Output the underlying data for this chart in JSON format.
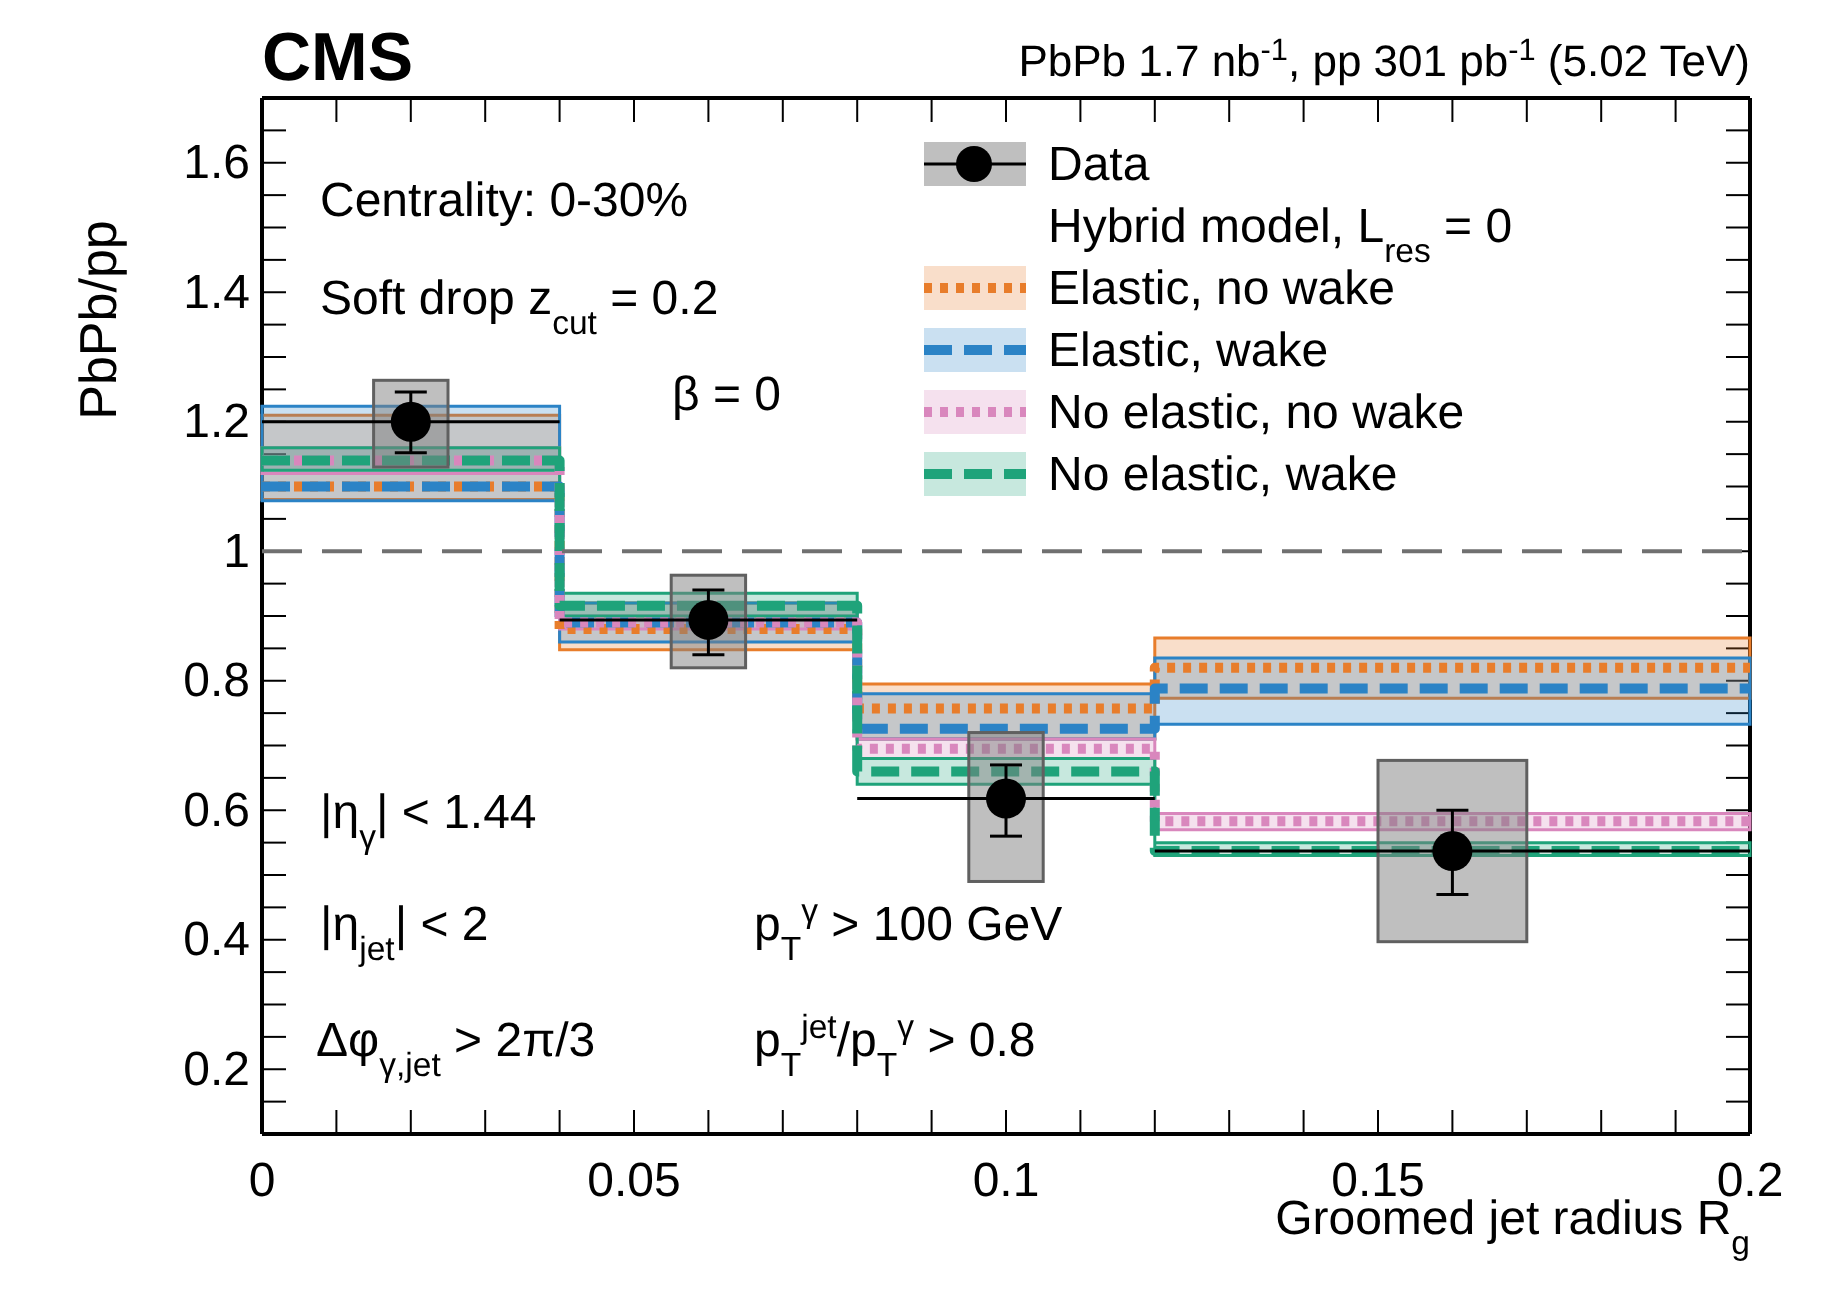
{
  "chart_data": {
    "type": "scatter",
    "title": "CMS",
    "subtitle": "PbPb 1.7 nb$^{-1}$, pp 301 pb$^{-1}$ (5.02 TeV)",
    "xlabel": "Groomed jet radius R$_{g}$",
    "ylabel": "PbPb/pp",
    "legend_title": "Hybrid model, L$_{res}$ = 0",
    "xlim": [
      0,
      0.2
    ],
    "ylim": [
      0.1,
      1.7
    ],
    "xticks": [
      0,
      {
        "value": 0.01,
        "label": null
      },
      {
        "value": 0.02,
        "label": null
      },
      {
        "value": 0.03,
        "label": null
      },
      {
        "value": 0.04,
        "label": null
      },
      0.05,
      {
        "value": 0.06,
        "label": null
      },
      {
        "value": 0.07,
        "label": null
      },
      {
        "value": 0.08,
        "label": null
      },
      {
        "value": 0.09,
        "label": null
      },
      0.1,
      {
        "value": 0.11,
        "label": null
      },
      {
        "value": 0.12,
        "label": null
      },
      {
        "value": 0.13,
        "label": null
      },
      {
        "value": 0.14,
        "label": null
      },
      0.15,
      {
        "value": 0.16,
        "label": null
      },
      {
        "value": 0.17,
        "label": null
      },
      {
        "value": 0.18,
        "label": null
      },
      {
        "value": 0.19,
        "label": null
      },
      0.2
    ],
    "yticks": [
      {
        "value": 0.15,
        "label": null
      },
      0.2,
      {
        "value": 0.25,
        "label": null
      },
      {
        "value": 0.3,
        "label": null
      },
      {
        "value": 0.35,
        "label": null
      },
      0.4,
      {
        "value": 0.45,
        "label": null
      },
      {
        "value": 0.5,
        "label": null
      },
      {
        "value": 0.55,
        "label": null
      },
      0.6,
      {
        "value": 0.65,
        "label": null
      },
      {
        "value": 0.7,
        "label": null
      },
      {
        "value": 0.75,
        "label": null
      },
      0.8,
      {
        "value": 0.85,
        "label": null
      },
      {
        "value": 0.9,
        "label": null
      },
      {
        "value": 0.95,
        "label": null
      },
      1,
      {
        "value": 1.05,
        "label": null
      },
      {
        "value": 1.1,
        "label": null
      },
      {
        "value": 1.15,
        "label": null
      },
      1.2,
      {
        "value": 1.25,
        "label": null
      },
      {
        "value": 1.3,
        "label": null
      },
      {
        "value": 1.35,
        "label": null
      },
      1.4,
      {
        "value": 1.45,
        "label": null
      },
      {
        "value": 1.5,
        "label": null
      },
      {
        "value": 1.55,
        "label": null
      },
      1.6,
      {
        "value": 1.65,
        "label": null
      }
    ],
    "legend": "top right",
    "ref_lines": [
      {
        "axis": "y",
        "value": 1,
        "color": "#707070",
        "line_style": "dashed"
      }
    ],
    "annotations": [
      "Centrality: 0-30%",
      "Soft drop z$_{cut}$ = 0.2",
      "β = 0",
      "|η$_{γ}$| < 1.44",
      "|η$_{jet}$| < 2",
      "Δφ$_{γ,jet}$ > 2π/3",
      "p$_{T}$$^{γ}$ > 100 GeV",
      "p$_{T}$$^{jet}$/p$_{T}$$^{γ}$ > 0.8"
    ],
    "series": [
      {
        "type": "step",
        "name": "Elastic, no wake",
        "color": "#e87d2b",
        "line_style": "dotted",
        "x": [
          0,
          0.04,
          0.08,
          0.12,
          0.2
        ],
        "values": [
          1.1,
          0.88,
          0.757,
          0.82,
          0.82
        ],
        "lower": [
          1.08,
          0.848,
          0.71,
          0.773,
          0.773
        ],
        "upper": [
          1.21,
          0.92,
          0.795,
          0.866,
          0.866
        ]
      },
      {
        "type": "step",
        "name": "Elastic, wake",
        "color": "#2b83c6",
        "line_style": "dashed",
        "x": [
          0,
          0.04,
          0.08,
          0.12,
          0.2
        ],
        "values": [
          1.1,
          0.89,
          0.726,
          0.788,
          0.788
        ],
        "lower": [
          1.078,
          0.86,
          0.71,
          0.733,
          0.733
        ],
        "upper": [
          1.224,
          0.92,
          0.78,
          0.835,
          0.835
        ]
      },
      {
        "type": "step",
        "name": "No elastic, no wake",
        "color": "#d987bd",
        "line_style": "dotted",
        "x": [
          0,
          0.04,
          0.08,
          0.12,
          0.2
        ],
        "values": [
          1.14,
          0.89,
          0.695,
          0.583,
          0.583
        ],
        "lower": [
          1.12,
          0.88,
          0.68,
          0.57,
          0.57
        ],
        "upper": [
          1.16,
          0.9,
          0.71,
          0.595,
          0.595
        ]
      },
      {
        "type": "step",
        "name": "No elastic, wake",
        "color": "#1fa37a",
        "line_style": "dashed",
        "x": [
          0,
          0.04,
          0.08,
          0.12,
          0.2
        ],
        "values": [
          1.14,
          0.916,
          0.66,
          0.537,
          0.537
        ],
        "lower": [
          1.125,
          0.9,
          0.64,
          0.53,
          0.53
        ],
        "upper": [
          1.16,
          0.935,
          0.68,
          0.55,
          0.55
        ]
      },
      {
        "name": "Data",
        "color": "#000000",
        "marker": "circle",
        "x": [
          0.02,
          0.06,
          0.1,
          0.16
        ],
        "values": [
          1.2,
          0.894,
          0.618,
          0.537
        ],
        "errors": [
          [
            1.152,
            1.246
          ],
          [
            0.84,
            0.94
          ],
          [
            0.56,
            0.67
          ],
          [
            0.47,
            0.6
          ]
        ],
        "xerrors": [
          0.02,
          0.02,
          0.02,
          0.04
        ]
      },
      {
        "type": "bar",
        "color": "#808080",
        "x": [
          0.02,
          0.06,
          0.1,
          0.16
        ],
        "base": [
          1.13,
          0.82,
          0.49,
          0.397
        ],
        "values": [
          0.134,
          0.143,
          0.23,
          0.28
        ]
      }
    ]
  }
}
